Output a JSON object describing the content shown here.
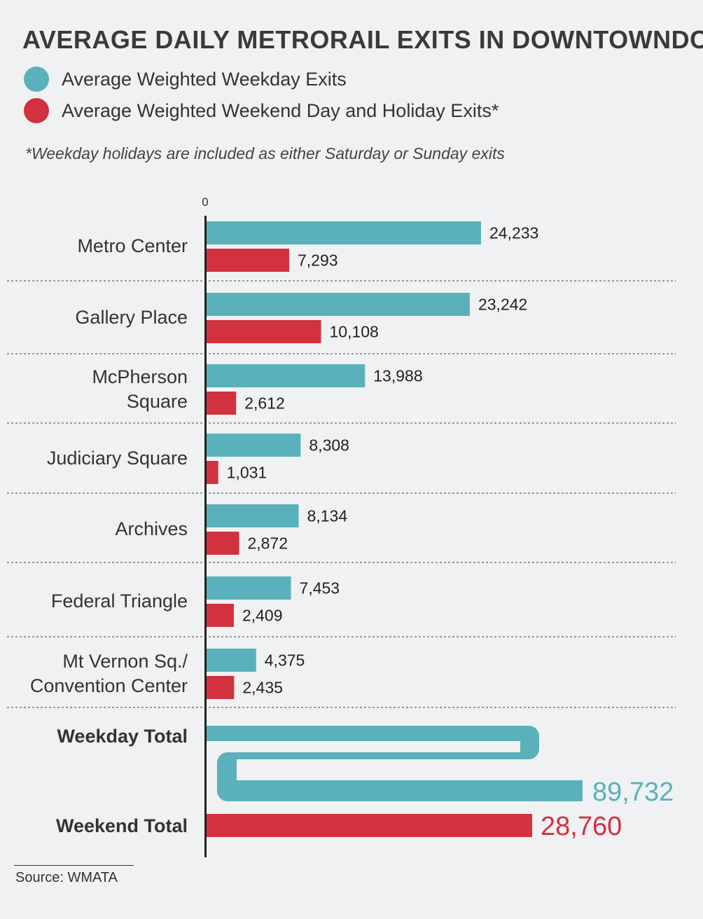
{
  "title": "AVERAGE DAILY METRORAIL EXITS IN DOWNTOWNDC",
  "legend": [
    {
      "label": "Average Weighted Weekday Exits",
      "color": "#5ab1bb"
    },
    {
      "label": "Average Weighted Weekend Day and Holiday Exits*",
      "color": "#d2313f"
    }
  ],
  "note": "*Weekday holidays are included as either Saturday or Sunday exits",
  "source": "Source: WMATA",
  "chart_data": {
    "type": "bar",
    "orientation": "horizontal",
    "axis_zero_label": "0",
    "categories": [
      [
        "Metro Center"
      ],
      [
        "Gallery Place"
      ],
      [
        "McPherson",
        "Square"
      ],
      [
        "Judiciary Square"
      ],
      [
        "Archives"
      ],
      [
        "Federal Triangle"
      ],
      [
        "Mt Vernon Sq./",
        "Convention Center"
      ]
    ],
    "series": [
      {
        "name": "Average Weighted Weekday Exits",
        "color": "#5ab1bb",
        "values": [
          24233,
          23242,
          13988,
          8308,
          8134,
          7453,
          4375
        ],
        "labels": [
          "24,233",
          "23,242",
          "13,988",
          "8,308",
          "8,134",
          "7,453",
          "4,375"
        ]
      },
      {
        "name": "Average Weighted Weekend Day and Holiday Exits*",
        "color": "#d2313f",
        "values": [
          7293,
          10108,
          2612,
          1031,
          2872,
          2409,
          2435
        ],
        "labels": [
          "7,293",
          "10,108",
          "2,612",
          "1,031",
          "2,872",
          "2,409",
          "2,435"
        ]
      }
    ],
    "totals": [
      {
        "label": "Weekday Total",
        "value": 89732,
        "value_label": "89,732",
        "color": "#5ab1bb"
      },
      {
        "label": "Weekend Total",
        "value": 28760,
        "value_label": "28,760",
        "color": "#d2313f"
      }
    ]
  }
}
